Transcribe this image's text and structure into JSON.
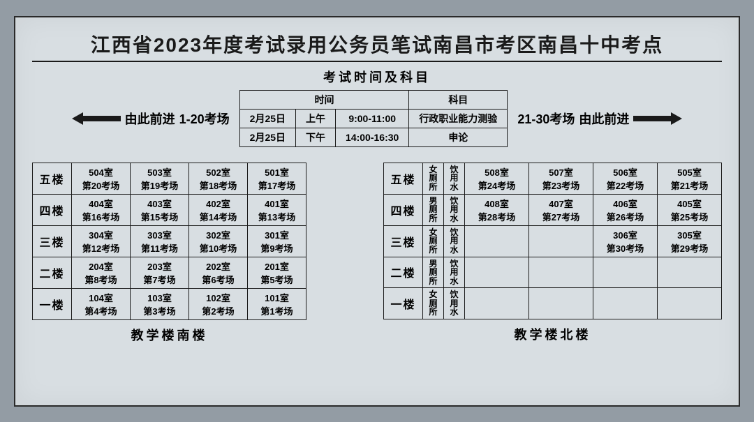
{
  "title": "江西省2023年度考试录用公务员笔试南昌市考区南昌十中考点",
  "subtitle": "考试时间及科目",
  "left_arrow": {
    "label": "由此前进",
    "range": "1-20考场"
  },
  "right_arrow": {
    "range": "21-30考场",
    "label": "由此前进"
  },
  "schedule": {
    "head_time": "时间",
    "head_subject": "科目",
    "rows": [
      {
        "date": "2月25日",
        "ampm": "上午",
        "time": "9:00-11:00",
        "subject": "行政职业能力测验"
      },
      {
        "date": "2月25日",
        "ampm": "下午",
        "time": "14:00-16:30",
        "subject": "申论"
      }
    ]
  },
  "south": {
    "name": "教学楼南楼",
    "floors": [
      {
        "floor": "五楼",
        "rooms": [
          {
            "r": "504室",
            "h": "第20考场"
          },
          {
            "r": "503室",
            "h": "第19考场"
          },
          {
            "r": "502室",
            "h": "第18考场"
          },
          {
            "r": "501室",
            "h": "第17考场"
          }
        ]
      },
      {
        "floor": "四楼",
        "rooms": [
          {
            "r": "404室",
            "h": "第16考场"
          },
          {
            "r": "403室",
            "h": "第15考场"
          },
          {
            "r": "402室",
            "h": "第14考场"
          },
          {
            "r": "401室",
            "h": "第13考场"
          }
        ]
      },
      {
        "floor": "三楼",
        "rooms": [
          {
            "r": "304室",
            "h": "第12考场"
          },
          {
            "r": "303室",
            "h": "第11考场"
          },
          {
            "r": "302室",
            "h": "第10考场"
          },
          {
            "r": "301室",
            "h": "第9考场"
          }
        ]
      },
      {
        "floor": "二楼",
        "rooms": [
          {
            "r": "204室",
            "h": "第8考场"
          },
          {
            "r": "203室",
            "h": "第7考场"
          },
          {
            "r": "202室",
            "h": "第6考场"
          },
          {
            "r": "201室",
            "h": "第5考场"
          }
        ]
      },
      {
        "floor": "一楼",
        "rooms": [
          {
            "r": "104室",
            "h": "第4考场"
          },
          {
            "r": "103室",
            "h": "第3考场"
          },
          {
            "r": "102室",
            "h": "第2考场"
          },
          {
            "r": "101室",
            "h": "第1考场"
          }
        ]
      }
    ]
  },
  "north": {
    "name": "教学楼北楼",
    "wc_female": "女厕所",
    "wc_male": "男厕所",
    "water": "饮用水",
    "floors": [
      {
        "floor": "五楼",
        "wc": "female",
        "rooms": [
          {
            "r": "508室",
            "h": "第24考场"
          },
          {
            "r": "507室",
            "h": "第23考场"
          },
          {
            "r": "506室",
            "h": "第22考场"
          },
          {
            "r": "505室",
            "h": "第21考场"
          }
        ]
      },
      {
        "floor": "四楼",
        "wc": "male",
        "rooms": [
          {
            "r": "408室",
            "h": "第28考场"
          },
          {
            "r": "407室",
            "h": "第27考场"
          },
          {
            "r": "406室",
            "h": "第26考场"
          },
          {
            "r": "405室",
            "h": "第25考场"
          }
        ]
      },
      {
        "floor": "三楼",
        "wc": "female",
        "rooms": [
          null,
          null,
          {
            "r": "306室",
            "h": "第30考场"
          },
          {
            "r": "305室",
            "h": "第29考场"
          }
        ]
      },
      {
        "floor": "二楼",
        "wc": "male",
        "rooms": [
          null,
          null,
          null,
          null
        ]
      },
      {
        "floor": "一楼",
        "wc": "female",
        "rooms": [
          null,
          null,
          null,
          null
        ]
      }
    ]
  },
  "colors": {
    "paper_bg": "#d8dee2",
    "page_bg": "#939ca4",
    "ink": "#1a1a1a"
  }
}
